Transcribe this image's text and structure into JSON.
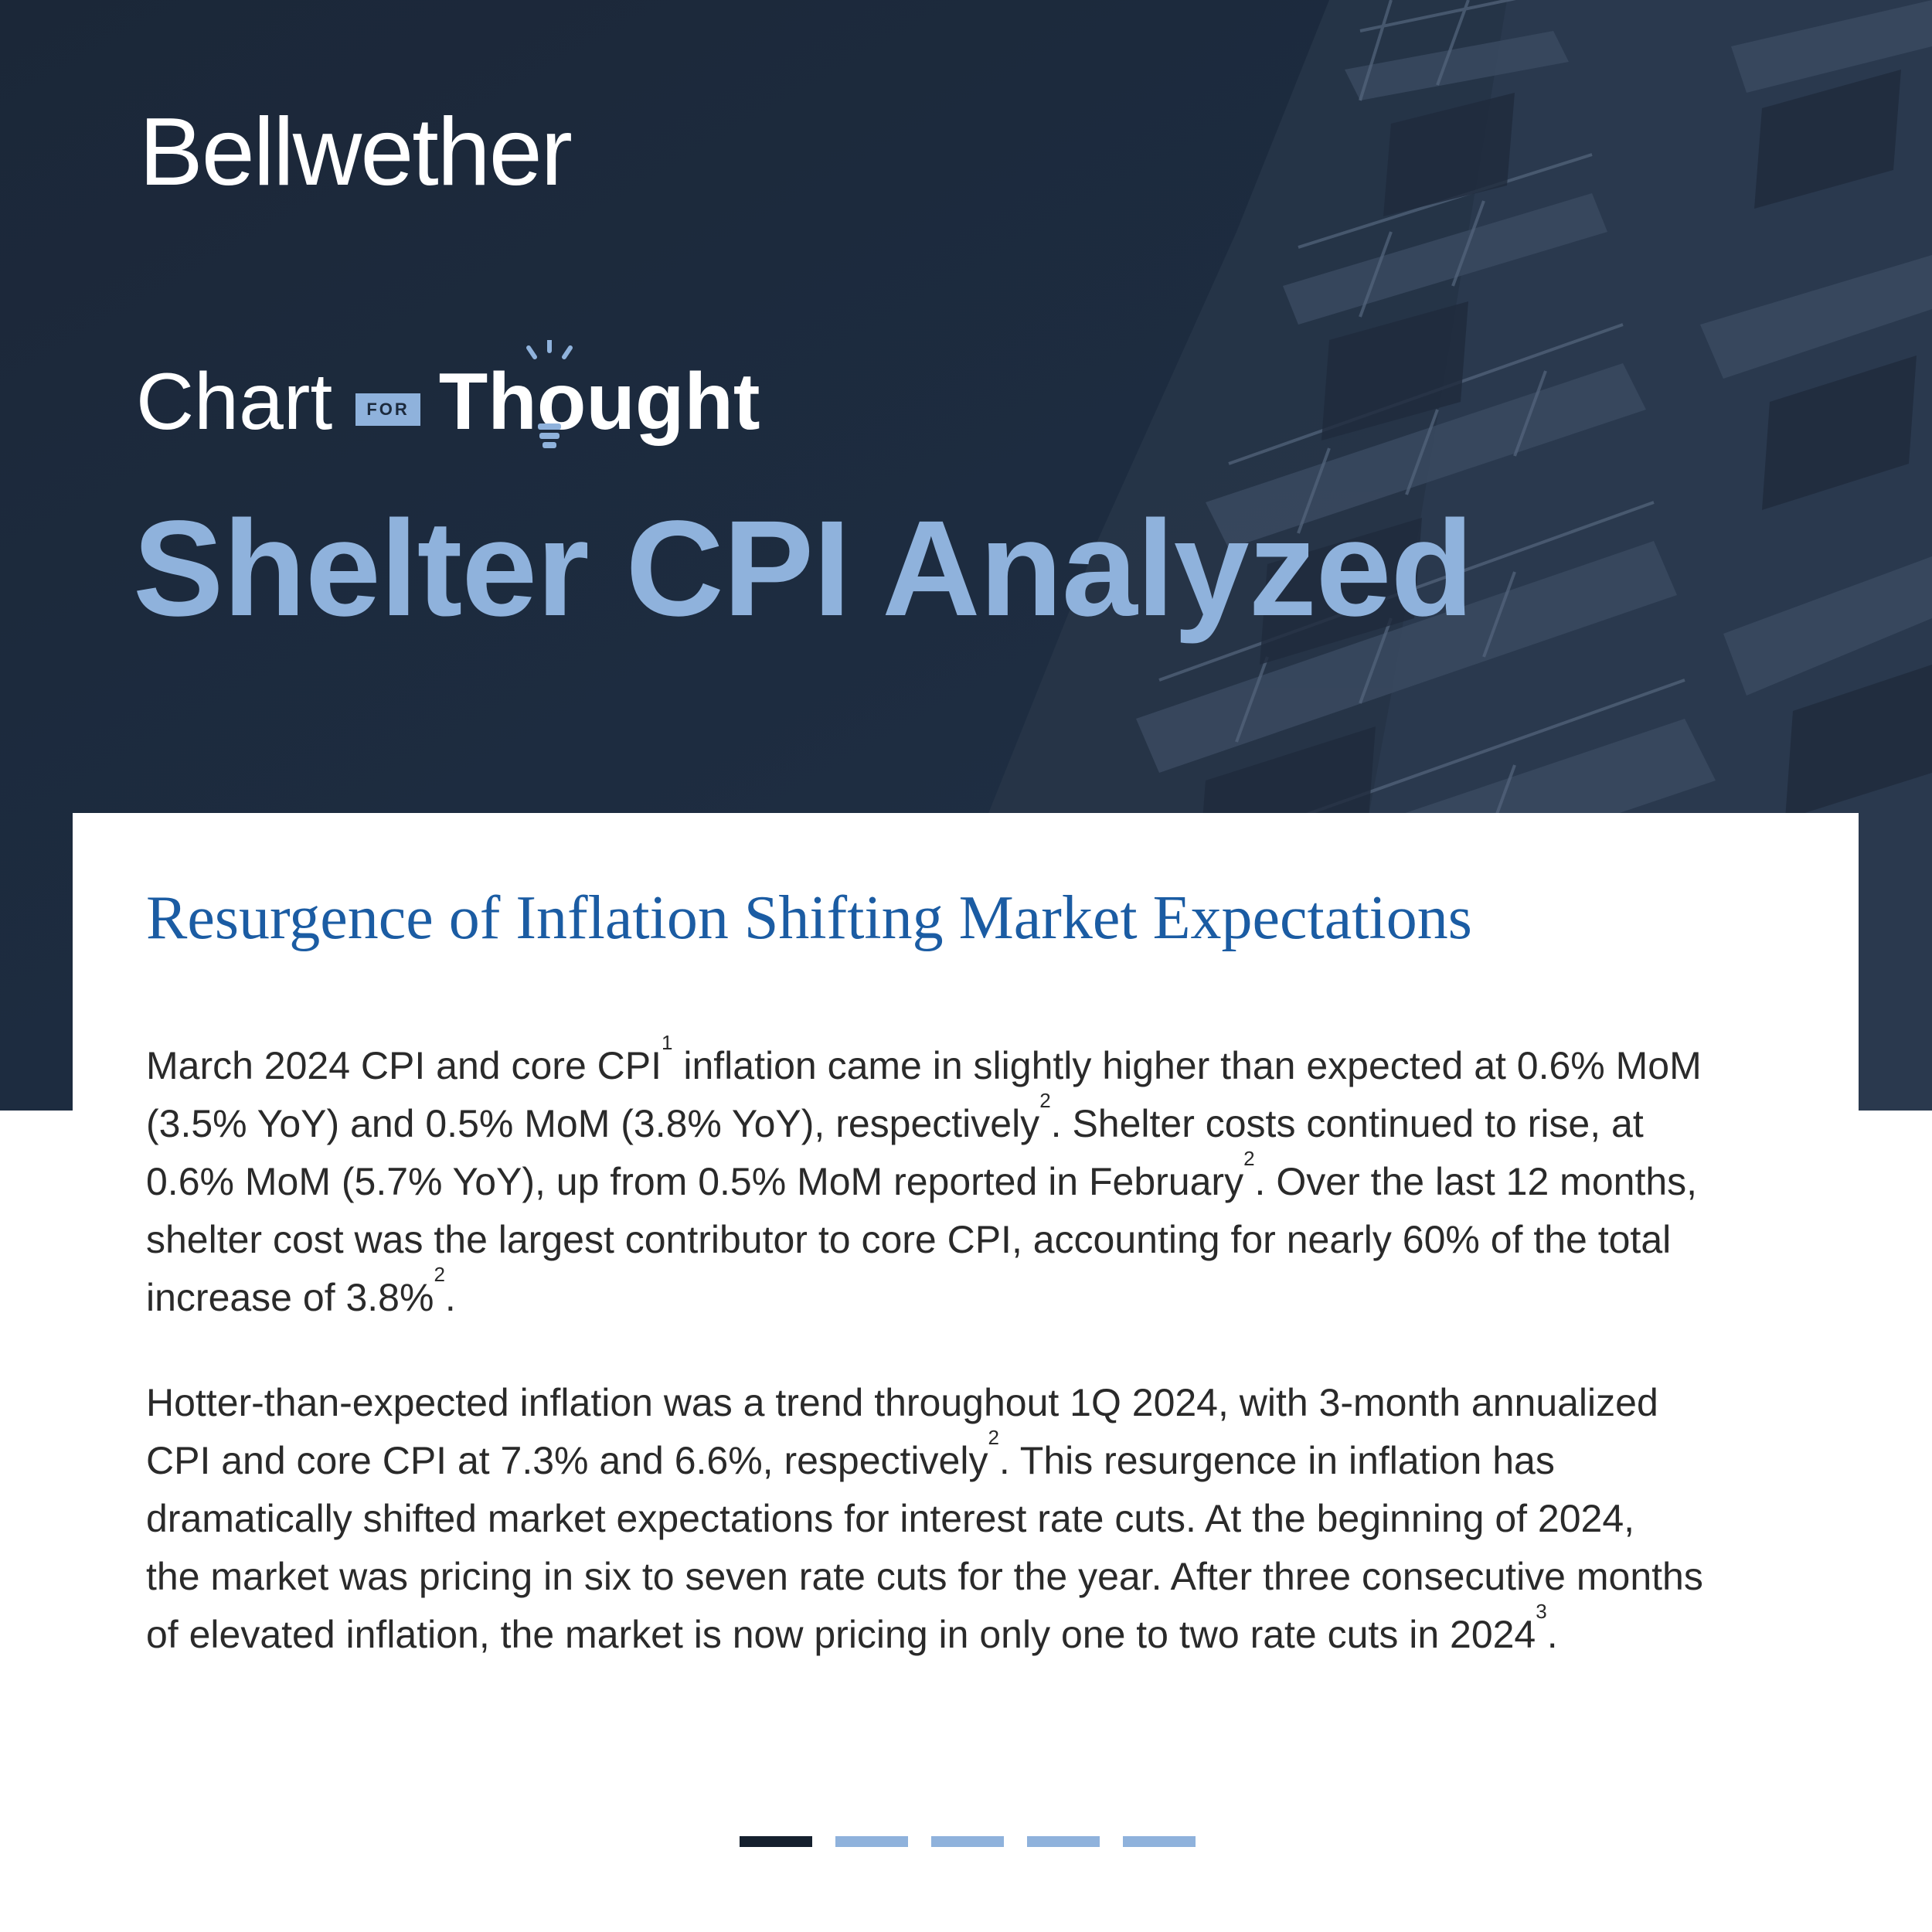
{
  "header": {
    "brand": "Bellwether",
    "series": {
      "chart": "Chart",
      "for": "FOR",
      "thought": "Thought"
    },
    "title": "Shelter CPI Analyzed"
  },
  "article": {
    "subtitle": "Resurgence of Inflation Shifting Market Expectations",
    "paragraph1": {
      "line1_a": "March 2024 CPI and core CPI",
      "line1_sup": "1",
      "line1_b": " inflation came in slightly higher than expected at 0.6% MoM",
      "line2_a": "(3.5% YoY) and 0.5% MoM (3.8% YoY), respectively",
      "line2_sup": "2",
      "line2_b": ". Shelter costs continued to rise, at",
      "line3_a": "0.6% MoM (5.7% YoY), up from 0.5% MoM reported in February",
      "line3_sup": "2",
      "line3_b": ". Over the last 12 months,",
      "line4": "shelter cost was the largest contributor to core CPI, accounting for nearly 60% of the total",
      "line5_a": "increase of 3.8%",
      "line5_sup": "2",
      "line5_b": "."
    },
    "paragraph2": {
      "line1": "Hotter-than-expected inflation was a trend throughout 1Q 2024, with 3-month annualized",
      "line2_a": "CPI and core CPI at 7.3% and 6.6%, respectively",
      "line2_sup": "2",
      "line2_b": ". This resurgence in inflation has",
      "line3": "dramatically shifted market expectations for interest rate cuts. At the beginning of 2024,",
      "line4": "the market was pricing in six to seven rate cuts for the year. After three consecutive months",
      "line5_a": "of elevated inflation, the market is now pricing in only one to two rate cuts in 2024",
      "line5_sup": "3",
      "line5_b": "."
    }
  },
  "pager": {
    "total": 5,
    "active_index": 0
  },
  "colors": {
    "hero_background": "#1c2a3d",
    "title_accent": "#8fb2dc",
    "subtitle_blue": "#1b5ca3",
    "pager_active": "#15202e",
    "pager_inactive": "#8fb2dc"
  },
  "icons": [
    "lightbulb-icon"
  ]
}
